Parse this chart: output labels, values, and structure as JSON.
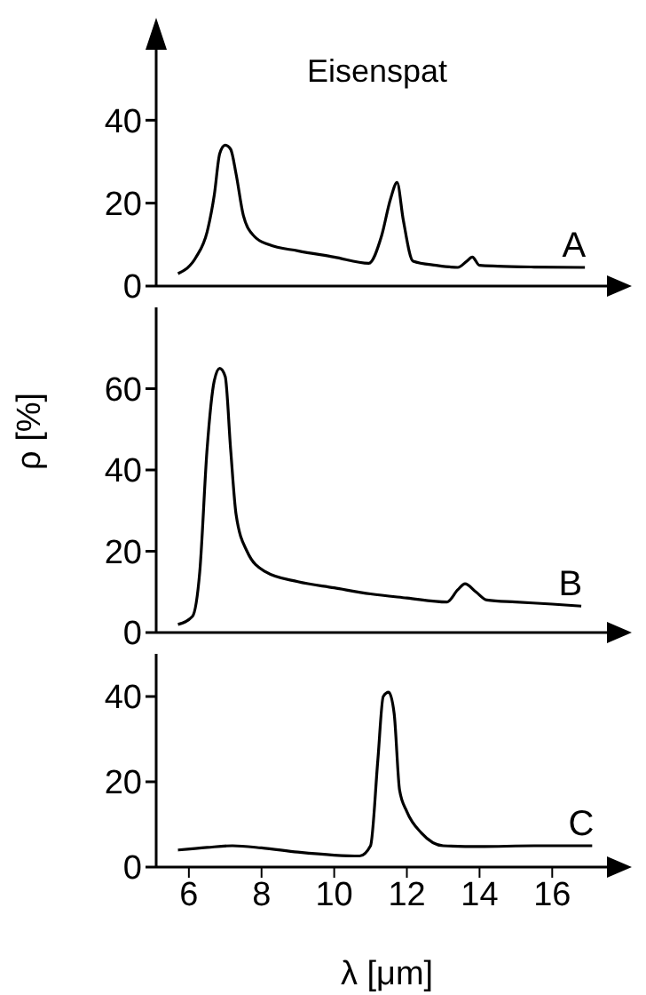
{
  "chart_data": [
    {
      "type": "line",
      "title": "Eisenspat",
      "xlim": [
        5.1,
        17.8
      ],
      "ylim": [
        0,
        63
      ],
      "yticks": [
        0,
        20,
        40
      ],
      "tick_labels": "y",
      "annotations": [
        {
          "text": "A",
          "x": 16.6,
          "y": 4.6
        }
      ],
      "series": [
        {
          "color": "#000000",
          "x": [
            5.7,
            6.2,
            6.5,
            6.7,
            6.85,
            7.0,
            7.15,
            7.3,
            7.5,
            7.8,
            8.2,
            9.0,
            10.0,
            10.95,
            11.3,
            11.55,
            11.73,
            11.9,
            12.17,
            12.8,
            13.4,
            13.65,
            13.8,
            14.0,
            14.5,
            15.5,
            16.9
          ],
          "values": [
            3,
            7,
            13,
            22,
            32,
            34,
            33,
            27,
            17,
            12,
            10,
            8.5,
            7,
            5.5,
            12,
            21,
            25,
            16,
            6,
            5,
            4.5,
            6,
            7,
            5,
            4.8,
            4.6,
            4.5
          ]
        }
      ]
    },
    {
      "type": "line",
      "ylabel": "ρ [%]",
      "xlim": [
        5.1,
        17.8
      ],
      "ylim": [
        0,
        80
      ],
      "yticks": [
        0,
        20,
        40,
        60
      ],
      "tick_labels": "y",
      "annotations": [
        {
          "text": "B",
          "x": 16.5,
          "y": 6.6
        }
      ],
      "series": [
        {
          "color": "#000000",
          "x": [
            5.7,
            6.1,
            6.3,
            6.5,
            6.7,
            6.85,
            7.0,
            7.15,
            7.3,
            7.6,
            8.1,
            9.0,
            10.0,
            11.0,
            12.0,
            13.1,
            13.4,
            13.6,
            13.9,
            14.2,
            15.0,
            16.0,
            16.8
          ],
          "values": [
            2,
            4,
            15,
            45,
            62,
            65,
            63,
            45,
            29,
            20,
            15,
            12.5,
            11,
            9.5,
            8.5,
            7.5,
            10.5,
            12,
            10,
            8,
            7.5,
            7,
            6.5
          ]
        }
      ]
    },
    {
      "type": "line",
      "xlabel": "λ [μm]",
      "xlim": [
        5.1,
        17.8
      ],
      "ylim": [
        0,
        50
      ],
      "yticks": [
        0,
        20,
        40
      ],
      "xticks": [
        6,
        8,
        10,
        12,
        14,
        16
      ],
      "annotations": [
        {
          "text": "C",
          "x": 16.8,
          "y": 5
        }
      ],
      "series": [
        {
          "color": "#000000",
          "x": [
            5.7,
            6.5,
            7.2,
            8.0,
            9.0,
            10.0,
            10.7,
            11.0,
            11.2,
            11.35,
            11.5,
            11.65,
            11.8,
            12.0,
            12.4,
            13.0,
            14.0,
            15.5,
            17.1
          ],
          "values": [
            4,
            4.6,
            5,
            4.5,
            3.5,
            2.8,
            2.6,
            5,
            25,
            40,
            41,
            36,
            18,
            13,
            8,
            5,
            4.8,
            5,
            5
          ]
        }
      ]
    }
  ]
}
